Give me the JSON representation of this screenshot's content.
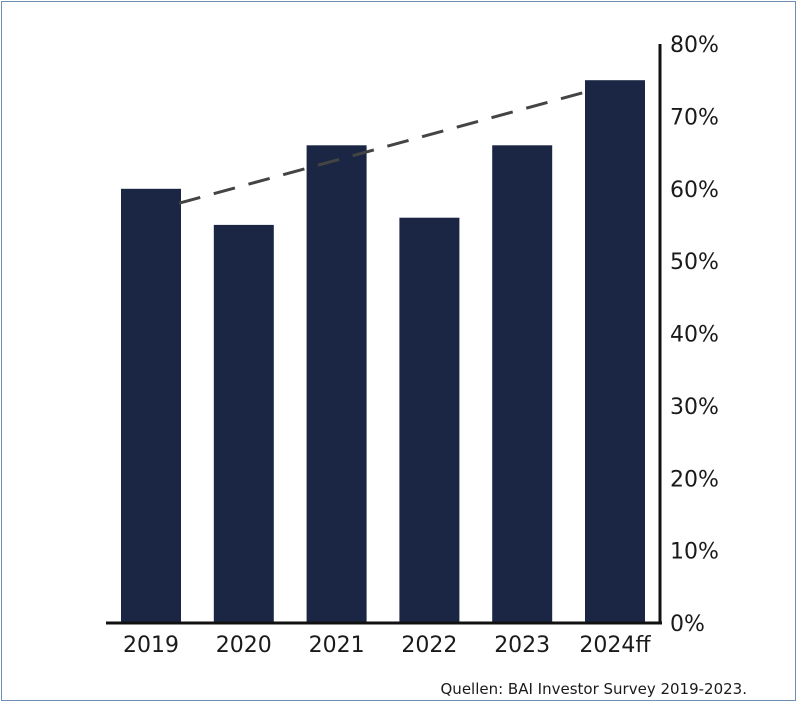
{
  "chart_data": {
    "type": "bar",
    "categories": [
      "2019",
      "2020",
      "2021",
      "2022",
      "2023",
      "2024ff"
    ],
    "values": [
      60,
      55,
      66,
      56,
      66,
      75
    ],
    "ylim": [
      0,
      80
    ],
    "yticks": [
      0,
      10,
      20,
      30,
      40,
      50,
      60,
      70,
      80
    ],
    "y_tick_format": "{v}%",
    "y_axis_position": "right",
    "grid": false,
    "legend": "none",
    "trendline": {
      "style": "dashed",
      "from": {
        "x": "2019",
        "y": 58
      },
      "to": {
        "x": "2024ff",
        "y": 73
      }
    },
    "colors": {
      "bar": "#1a2643",
      "axis": "#111111",
      "trend": "#444444"
    }
  },
  "source_note": "Quellen: BAI Investor Survey 2019-2023."
}
